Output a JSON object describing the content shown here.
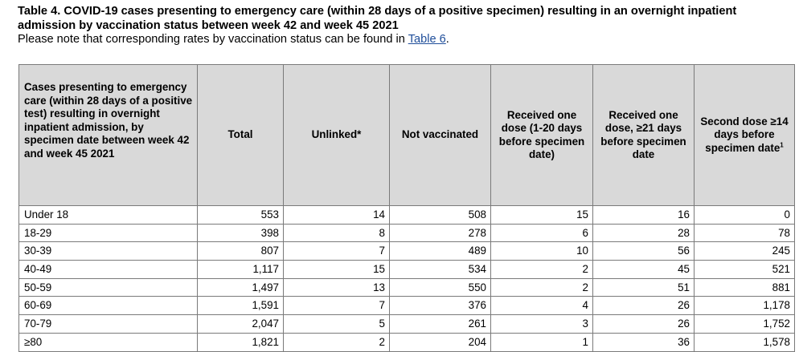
{
  "caption": {
    "title": "Table 4. COVID-19 cases presenting to emergency care (within 28 days of a positive specimen) resulting in an overnight inpatient admission by vaccination status between week 42 and week 45 2021",
    "note_prefix": "Please note that corresponding rates by vaccination status can be found in ",
    "note_link": "Table 6",
    "note_suffix": "."
  },
  "table": {
    "headers": {
      "category": "Cases presenting to emergency care (within 28 days of a positive test) resulting in overnight inpatient admission, by specimen date between week 42 and week 45 2021",
      "total": "Total",
      "unlinked": "Unlinked*",
      "not_vaccinated": "Not vaccinated",
      "one_dose_1_20": "Received one dose (1-20 days before specimen date)",
      "one_dose_21": "Received one dose, ≥21 days before specimen date",
      "second_dose": "Second dose ≥14 days before specimen date",
      "second_dose_footnote": "1"
    },
    "rows": [
      {
        "age": "Under 18",
        "total": "553",
        "unlinked": "14",
        "not_vaccinated": "508",
        "one_dose_1_20": "15",
        "one_dose_21": "16",
        "second_dose": "0"
      },
      {
        "age": "18-29",
        "total": "398",
        "unlinked": "8",
        "not_vaccinated": "278",
        "one_dose_1_20": "6",
        "one_dose_21": "28",
        "second_dose": "78"
      },
      {
        "age": "30-39",
        "total": "807",
        "unlinked": "7",
        "not_vaccinated": "489",
        "one_dose_1_20": "10",
        "one_dose_21": "56",
        "second_dose": "245"
      },
      {
        "age": "40-49",
        "total": "1,117",
        "unlinked": "15",
        "not_vaccinated": "534",
        "one_dose_1_20": "2",
        "one_dose_21": "45",
        "second_dose": "521"
      },
      {
        "age": "50-59",
        "total": "1,497",
        "unlinked": "13",
        "not_vaccinated": "550",
        "one_dose_1_20": "2",
        "one_dose_21": "51",
        "second_dose": "881"
      },
      {
        "age": "60-69",
        "total": "1,591",
        "unlinked": "7",
        "not_vaccinated": "376",
        "one_dose_1_20": "4",
        "one_dose_21": "26",
        "second_dose": "1,178"
      },
      {
        "age": "70-79",
        "total": "2,047",
        "unlinked": "5",
        "not_vaccinated": "261",
        "one_dose_1_20": "3",
        "one_dose_21": "26",
        "second_dose": "1,752"
      },
      {
        "age": "≥80",
        "total": "1,821",
        "unlinked": "2",
        "not_vaccinated": "204",
        "one_dose_1_20": "1",
        "one_dose_21": "36",
        "second_dose": "1,578"
      }
    ]
  }
}
